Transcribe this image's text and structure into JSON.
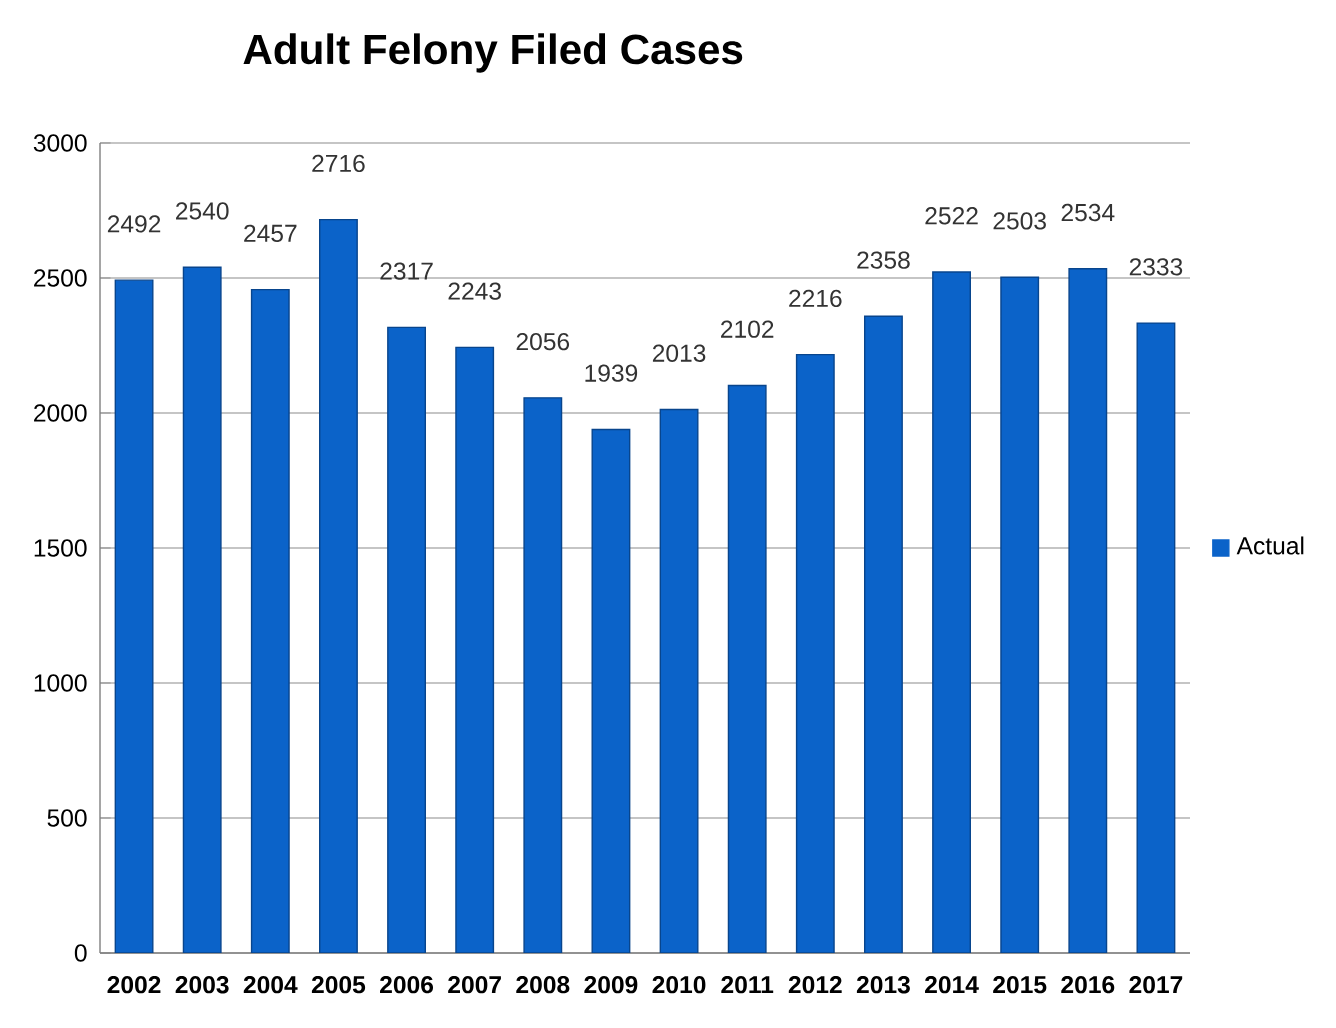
{
  "chart_data": {
    "type": "bar",
    "title": "Adult Felony Filed Cases",
    "categories": [
      "2002",
      "2003",
      "2004",
      "2005",
      "2006",
      "2007",
      "2008",
      "2009",
      "2010",
      "2011",
      "2012",
      "2013",
      "2014",
      "2015",
      "2016",
      "2017"
    ],
    "series": [
      {
        "name": "Actual",
        "color": "#0b63c9",
        "values": [
          2492,
          2540,
          2457,
          2716,
          2317,
          2243,
          2056,
          1939,
          2013,
          2102,
          2216,
          2358,
          2522,
          2503,
          2534,
          2333
        ]
      }
    ],
    "ylim": [
      0,
      3000
    ],
    "yticks": [
      0,
      500,
      1000,
      1500,
      2000,
      2500,
      3000
    ],
    "grid": "y",
    "legend": "right",
    "data_labels": true
  }
}
